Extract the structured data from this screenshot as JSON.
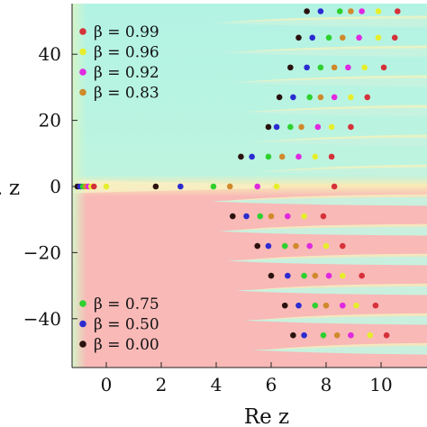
{
  "chart_data": {
    "type": "scatter",
    "title": "",
    "xlabel": "Re z",
    "ylabel": "z",
    "xlim": [
      -1.2,
      12
    ],
    "ylim": [
      -55,
      55
    ],
    "x_ticks": [
      0,
      2,
      4,
      6,
      8,
      10
    ],
    "y_ticks": [
      40,
      20,
      0,
      -20,
      -40
    ],
    "tick_labels_x": [
      "0",
      "2",
      "4",
      "6",
      "8",
      "10"
    ],
    "tick_labels_y": [
      "40",
      "20",
      "0",
      "−20",
      "−40"
    ],
    "background": {
      "description_colors": {
        "upper_left": "#b3f3e4",
        "lower_left": "#f8b9b7",
        "band_light": "#f8ebb6",
        "stripe_pink": "#f8b9b7"
      }
    },
    "legend_top": [
      {
        "label": "β = 0.99",
        "color": "#d6313a"
      },
      {
        "label": "β = 0.96",
        "color": "#e6ee2c"
      },
      {
        "label": "β = 0.92",
        "color": "#e028e0"
      },
      {
        "label": "β = 0.83",
        "color": "#d08a2c"
      }
    ],
    "legend_bottom": [
      {
        "label": "β = 0.75",
        "color": "#2ed12e"
      },
      {
        "label": "β = 0.50",
        "color": "#2b2bd0"
      },
      {
        "label": "β = 0.00",
        "color": "#2a120e"
      }
    ],
    "series": [
      {
        "name": "β = 0.00",
        "color": "#2a120e",
        "points": [
          [
            1.8,
            0
          ],
          [
            4.6,
            -9
          ],
          [
            4.9,
            9
          ],
          [
            5.5,
            -18
          ],
          [
            5.9,
            18
          ],
          [
            6.0,
            -27
          ],
          [
            6.3,
            27
          ],
          [
            6.5,
            -36
          ],
          [
            6.7,
            36
          ],
          [
            6.8,
            -45
          ],
          [
            7.0,
            45
          ],
          [
            7.3,
            53
          ]
        ]
      },
      {
        "name": "β = 0.50",
        "color": "#2b2bd0",
        "points": [
          [
            2.7,
            0
          ],
          [
            5.1,
            -9
          ],
          [
            5.3,
            9
          ],
          [
            5.9,
            -18
          ],
          [
            6.2,
            18
          ],
          [
            6.6,
            -27
          ],
          [
            6.8,
            27
          ],
          [
            7.0,
            -36
          ],
          [
            7.3,
            36
          ],
          [
            7.2,
            -45
          ],
          [
            7.5,
            45
          ],
          [
            7.8,
            53
          ]
        ]
      },
      {
        "name": "β = 0.75",
        "color": "#2ed12e",
        "points": [
          [
            3.9,
            0
          ],
          [
            5.6,
            -9
          ],
          [
            5.9,
            9
          ],
          [
            6.5,
            -18
          ],
          [
            6.7,
            18
          ],
          [
            7.2,
            -27
          ],
          [
            7.4,
            27
          ],
          [
            7.6,
            -36
          ],
          [
            7.8,
            36
          ],
          [
            7.9,
            -45
          ],
          [
            8.1,
            45
          ],
          [
            8.5,
            53
          ]
        ]
      },
      {
        "name": "β = 0.83",
        "color": "#d08a2c",
        "points": [
          [
            4.5,
            0
          ],
          [
            6.0,
            -9
          ],
          [
            6.4,
            9
          ],
          [
            6.9,
            -18
          ],
          [
            7.1,
            18
          ],
          [
            7.6,
            -27
          ],
          [
            7.8,
            27
          ],
          [
            8.0,
            -36
          ],
          [
            8.3,
            36
          ],
          [
            8.4,
            -45
          ],
          [
            8.6,
            45
          ],
          [
            8.9,
            53
          ]
        ]
      },
      {
        "name": "β = 0.92",
        "color": "#e028e0",
        "points": [
          [
            5.5,
            0
          ],
          [
            6.6,
            -9
          ],
          [
            7.0,
            9
          ],
          [
            7.4,
            -18
          ],
          [
            7.7,
            18
          ],
          [
            8.1,
            -27
          ],
          [
            8.3,
            27
          ],
          [
            8.6,
            -36
          ],
          [
            8.8,
            36
          ],
          [
            8.9,
            -45
          ],
          [
            9.2,
            45
          ],
          [
            9.3,
            53
          ]
        ]
      },
      {
        "name": "β = 0.96",
        "color": "#e6ee2c",
        "points": [
          [
            6.2,
            0
          ],
          [
            7.2,
            -9
          ],
          [
            7.6,
            9
          ],
          [
            8.0,
            -18
          ],
          [
            8.2,
            18
          ],
          [
            8.6,
            -27
          ],
          [
            8.9,
            27
          ],
          [
            9.1,
            -36
          ],
          [
            9.4,
            36
          ],
          [
            9.6,
            -45
          ],
          [
            9.9,
            45
          ],
          [
            9.9,
            53
          ]
        ]
      },
      {
        "name": "β = 0.99",
        "color": "#d6313a",
        "points": [
          [
            8.3,
            0
          ],
          [
            7.9,
            -9
          ],
          [
            8.2,
            9
          ],
          [
            8.6,
            -18
          ],
          [
            8.9,
            18
          ],
          [
            9.3,
            -27
          ],
          [
            9.5,
            27
          ],
          [
            9.8,
            -36
          ],
          [
            10.1,
            36
          ],
          [
            10.2,
            -45
          ],
          [
            10.5,
            45
          ],
          [
            10.6,
            53
          ]
        ]
      }
    ],
    "cluster_near_origin": [
      {
        "x": -1.05,
        "y": 0,
        "color": "#2a120e"
      },
      {
        "x": -0.95,
        "y": 0,
        "color": "#2b2bd0"
      },
      {
        "x": -0.85,
        "y": 0,
        "color": "#2ed12e"
      },
      {
        "x": -0.75,
        "y": 0,
        "color": "#d08a2c"
      },
      {
        "x": -0.65,
        "y": 0,
        "color": "#e028e0"
      },
      {
        "x": -0.55,
        "y": 0,
        "color": "#e6ee2c"
      },
      {
        "x": -0.45,
        "y": 0,
        "color": "#d6313a"
      },
      {
        "x": 0.0,
        "y": 0,
        "color": "#e6ee2c"
      }
    ],
    "grid": false
  }
}
